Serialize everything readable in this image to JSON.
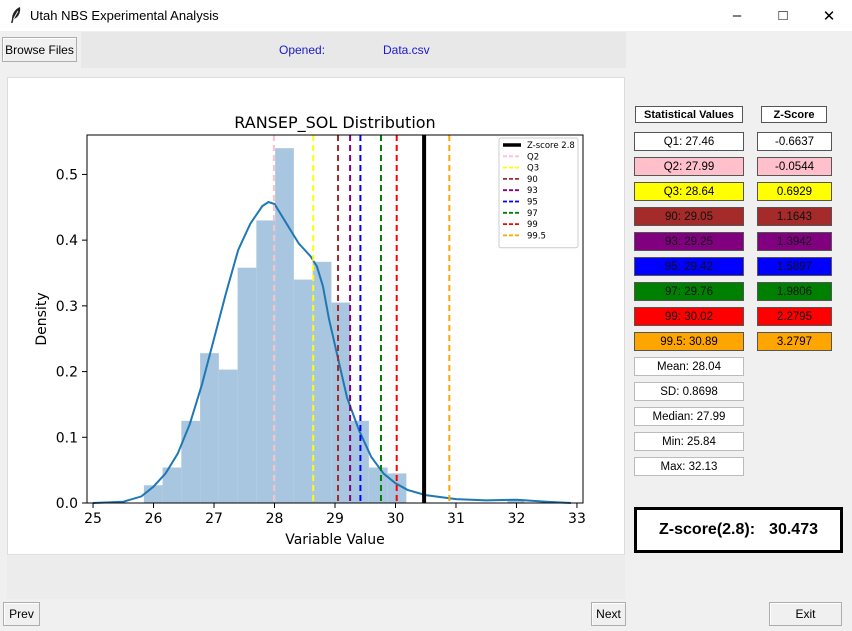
{
  "window": {
    "title": "Utah NBS Experimental Analysis"
  },
  "toolbar": {
    "browse_label": "Browse Files",
    "opened_label": "Opened:",
    "opened_file": "Data.csv"
  },
  "nav": {
    "prev_label": "Prev",
    "next_label": "Next",
    "exit_label": "Exit"
  },
  "stats": {
    "header_values": "Statistical Values",
    "header_zscore": "Z-Score",
    "rows": [
      {
        "label": "Q1:  27.46",
        "z": "-0.6637",
        "color": "#ffffff"
      },
      {
        "label": "Q2:  27.99",
        "z": "-0.0544",
        "color": "#ffc0cb"
      },
      {
        "label": "Q3:  28.64",
        "z": "0.6929",
        "color": "#ffff00"
      },
      {
        "label": "90:  29.05",
        "z": "1.1643",
        "color": "#a52a2a"
      },
      {
        "label": "93:  29.25",
        "z": "1.3942",
        "color": "#800080"
      },
      {
        "label": "95:  29.42",
        "z": "1.5897",
        "color": "#0000ff"
      },
      {
        "label": "97:  29.76",
        "z": "1.9806",
        "color": "#008000"
      },
      {
        "label": "99:  30.02",
        "z": "2.2795",
        "color": "#ff0000"
      },
      {
        "label": "99.5:  30.89",
        "z": "3.2797",
        "color": "#ffa500"
      }
    ],
    "extra": [
      {
        "label": "Mean:  28.04"
      },
      {
        "label": "SD:  0.8698"
      },
      {
        "label": "Median:  27.99"
      },
      {
        "label": "Min:  25.84"
      },
      {
        "label": "Max:  32.13"
      }
    ],
    "zscore_result_label": "Z-score(2.8):",
    "zscore_result_value": "30.473"
  },
  "chart_data": {
    "type": "bar",
    "title": "RANSEP_SOL Distribution",
    "xlabel": "Variable Value",
    "ylabel": "Density",
    "xlim": [
      24.9,
      33.1
    ],
    "ylim": [
      0,
      0.56
    ],
    "xticks": [
      25,
      26,
      27,
      28,
      29,
      30,
      31,
      32,
      33
    ],
    "yticks": [
      0.0,
      0.1,
      0.2,
      0.3,
      0.4,
      0.5
    ],
    "ytick_labels": [
      "0.0",
      "0.1",
      "0.2",
      "0.3",
      "0.4",
      "0.5"
    ],
    "hist": {
      "color": "#a8c6df",
      "edges": [
        25.84,
        26.15,
        26.46,
        26.77,
        27.08,
        27.39,
        27.7,
        28.01,
        28.32,
        28.63,
        28.94,
        29.25,
        29.56,
        29.87,
        30.18,
        31.85,
        32.13
      ],
      "heights": [
        0.027,
        0.054,
        0.125,
        0.228,
        0.203,
        0.358,
        0.43,
        0.54,
        0.34,
        0.367,
        0.305,
        0.125,
        0.054,
        0.045,
        0.0,
        0.005
      ]
    },
    "kde": {
      "color": "#1f77b4",
      "x": [
        25.0,
        25.5,
        25.8,
        26.0,
        26.2,
        26.4,
        26.6,
        26.8,
        27.0,
        27.2,
        27.4,
        27.6,
        27.8,
        27.9,
        28.0,
        28.1,
        28.2,
        28.3,
        28.4,
        28.5,
        28.6,
        28.7,
        28.8,
        28.9,
        29.0,
        29.2,
        29.4,
        29.6,
        29.8,
        30.0,
        30.2,
        30.5,
        31.0,
        31.5,
        32.0,
        32.5,
        32.9
      ],
      "y": [
        0.0,
        0.002,
        0.01,
        0.025,
        0.045,
        0.075,
        0.12,
        0.18,
        0.25,
        0.32,
        0.385,
        0.425,
        0.452,
        0.458,
        0.455,
        0.44,
        0.425,
        0.41,
        0.395,
        0.385,
        0.375,
        0.36,
        0.33,
        0.28,
        0.24,
        0.16,
        0.11,
        0.07,
        0.045,
        0.03,
        0.02,
        0.012,
        0.006,
        0.004,
        0.005,
        0.002,
        0.0
      ]
    },
    "vlines": [
      {
        "name": "Z-score 2.8",
        "x": 30.473,
        "color": "#000000",
        "dashed": false
      },
      {
        "name": "Q2",
        "x": 27.99,
        "color": "#ffc0cb",
        "dashed": true
      },
      {
        "name": "Q3",
        "x": 28.64,
        "color": "#ffff00",
        "dashed": true
      },
      {
        "name": "90",
        "x": 29.05,
        "color": "#a52a2a",
        "dashed": true
      },
      {
        "name": "93",
        "x": 29.25,
        "color": "#800080",
        "dashed": true
      },
      {
        "name": "95",
        "x": 29.42,
        "color": "#0000ff",
        "dashed": true
      },
      {
        "name": "97",
        "x": 29.76,
        "color": "#008000",
        "dashed": true
      },
      {
        "name": "99",
        "x": 30.02,
        "color": "#ff0000",
        "dashed": true
      },
      {
        "name": "99.5",
        "x": 30.89,
        "color": "#ffa500",
        "dashed": true
      }
    ],
    "legend_position": "top-right"
  }
}
